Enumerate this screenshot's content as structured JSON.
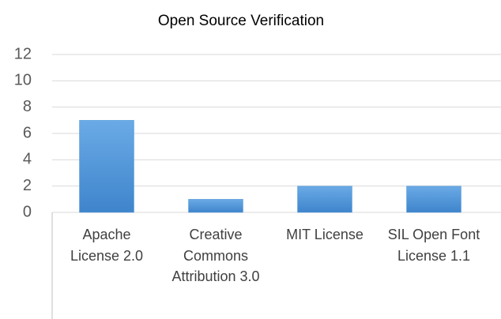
{
  "chart_data": {
    "type": "bar",
    "title": "Open Source Verification",
    "categories": [
      "Apache License 2.0",
      "Creative Commons Attribution 3.0",
      "MIT License",
      "SIL Open Font License 1.1"
    ],
    "values": [
      7,
      1,
      2,
      2
    ],
    "color": "#5b9bd5",
    "ylim": [
      0,
      12
    ],
    "yticks": [
      0,
      2,
      4,
      6,
      8,
      10,
      12
    ],
    "grid": true
  }
}
